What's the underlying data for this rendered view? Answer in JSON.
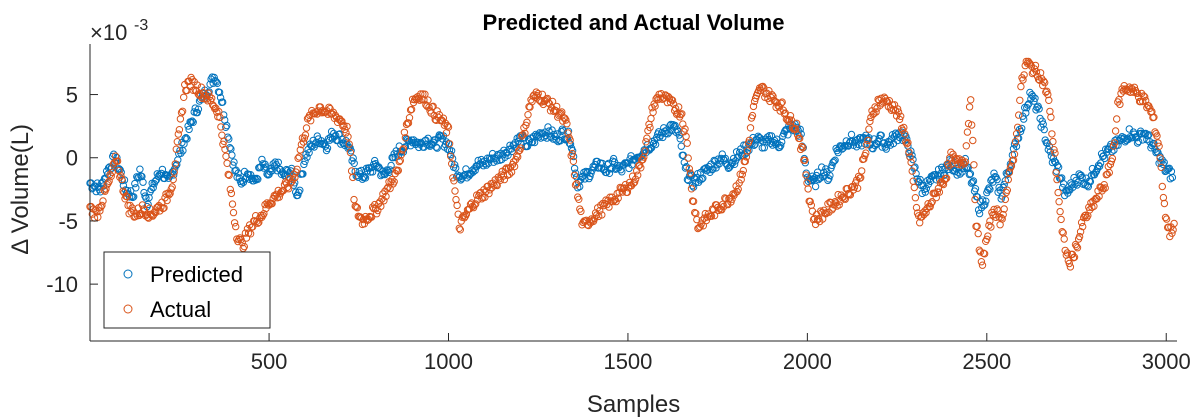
{
  "chart_data": {
    "type": "scatter",
    "title": "Predicted and Actual Volume",
    "xlabel": "Samples",
    "ylabel": "Δ Volume(L)",
    "y_exponent_label": "×10",
    "y_exponent": "-3",
    "xlim": [
      1,
      3030
    ],
    "ylim": [
      -14.5,
      9
    ],
    "x_ticks": [
      500,
      1000,
      1500,
      2000,
      2500,
      3000
    ],
    "y_ticks": [
      -10,
      -5,
      0,
      5
    ],
    "x_tick_labels": [
      "500",
      "1000",
      "1500",
      "2000",
      "2500",
      "3000"
    ],
    "y_tick_labels": [
      "-10",
      "-5",
      "0",
      "5"
    ],
    "legend_position": "bottom-left",
    "grid": false,
    "series": [
      {
        "name": "Predicted",
        "color": "#0072BD",
        "points": [
          [
            1,
            -2
          ],
          [
            30,
            -2.5
          ],
          [
            50,
            -1
          ],
          [
            70,
            0
          ],
          [
            85,
            -1
          ],
          [
            100,
            -2.5
          ],
          [
            120,
            -3
          ],
          [
            140,
            -1
          ],
          [
            160,
            -3.5
          ],
          [
            180,
            -2
          ],
          [
            200,
            -1
          ],
          [
            220,
            -2
          ],
          [
            240,
            -0.5
          ],
          [
            260,
            1
          ],
          [
            280,
            2.5
          ],
          [
            300,
            4
          ],
          [
            330,
            5.5
          ],
          [
            350,
            6.5
          ],
          [
            365,
            5
          ],
          [
            385,
            2
          ],
          [
            405,
            -1
          ],
          [
            420,
            -2
          ],
          [
            440,
            -1
          ],
          [
            460,
            -2
          ],
          [
            480,
            -0.5
          ],
          [
            500,
            -1.5
          ],
          [
            520,
            -0.5
          ],
          [
            540,
            -1.5
          ],
          [
            560,
            -1
          ],
          [
            580,
            -3
          ],
          [
            600,
            0
          ],
          [
            620,
            1
          ],
          [
            640,
            1.5
          ],
          [
            660,
            1
          ],
          [
            680,
            2
          ],
          [
            700,
            1.5
          ],
          [
            720,
            1
          ],
          [
            740,
            -1
          ],
          [
            760,
            -1.5
          ],
          [
            780,
            -1
          ],
          [
            800,
            -0.5
          ],
          [
            820,
            -1.5
          ],
          [
            840,
            -0.5
          ],
          [
            860,
            0.5
          ],
          [
            880,
            1
          ],
          [
            900,
            1.5
          ],
          [
            920,
            1
          ],
          [
            940,
            1.5
          ],
          [
            960,
            1
          ],
          [
            980,
            1.5
          ],
          [
            1000,
            1
          ],
          [
            1020,
            -1
          ],
          [
            1040,
            -1.5
          ],
          [
            1060,
            -1
          ],
          [
            1080,
            -0.5
          ],
          [
            1100,
            -0.5
          ],
          [
            1120,
            0
          ],
          [
            1140,
            0
          ],
          [
            1160,
            0.5
          ],
          [
            1180,
            1
          ],
          [
            1200,
            1.5
          ],
          [
            1220,
            1
          ],
          [
            1240,
            1.5
          ],
          [
            1260,
            2
          ],
          [
            1280,
            2
          ],
          [
            1300,
            1.5
          ],
          [
            1320,
            2
          ],
          [
            1340,
            1.5
          ],
          [
            1360,
            -2
          ],
          [
            1380,
            -1.5
          ],
          [
            1400,
            -1
          ],
          [
            1420,
            -0.5
          ],
          [
            1440,
            -1
          ],
          [
            1460,
            -0.5
          ],
          [
            1480,
            -1
          ],
          [
            1500,
            -0.5
          ],
          [
            1520,
            0
          ],
          [
            1540,
            0.5
          ],
          [
            1560,
            1
          ],
          [
            1580,
            1.5
          ],
          [
            1600,
            2
          ],
          [
            1620,
            2.5
          ],
          [
            1640,
            2
          ],
          [
            1660,
            -1
          ],
          [
            1680,
            -2
          ],
          [
            1700,
            -1.5
          ],
          [
            1720,
            -1
          ],
          [
            1740,
            -0.5
          ],
          [
            1760,
            0
          ],
          [
            1780,
            -0.5
          ],
          [
            1800,
            0
          ],
          [
            1820,
            0.5
          ],
          [
            1840,
            1
          ],
          [
            1860,
            1.5
          ],
          [
            1880,
            1
          ],
          [
            1900,
            1.5
          ],
          [
            1920,
            1
          ],
          [
            1940,
            2
          ],
          [
            1960,
            2.5
          ],
          [
            1980,
            2
          ],
          [
            2000,
            -1.5
          ],
          [
            2020,
            -2
          ],
          [
            2040,
            -1
          ],
          [
            2060,
            -1.5
          ],
          [
            2080,
            0.5
          ],
          [
            2100,
            1
          ],
          [
            2120,
            1.5
          ],
          [
            2140,
            1
          ],
          [
            2160,
            1.5
          ],
          [
            2180,
            1
          ],
          [
            2200,
            1.5
          ],
          [
            2220,
            1
          ],
          [
            2240,
            1.5
          ],
          [
            2260,
            2
          ],
          [
            2280,
            1
          ],
          [
            2300,
            -1
          ],
          [
            2320,
            -2.5
          ],
          [
            2340,
            -2
          ],
          [
            2360,
            -1.5
          ],
          [
            2380,
            -1
          ],
          [
            2400,
            -0.5
          ],
          [
            2420,
            -1
          ],
          [
            2440,
            -0.5
          ],
          [
            2460,
            -2
          ],
          [
            2480,
            -4
          ],
          [
            2500,
            -3
          ],
          [
            2520,
            -1.5
          ],
          [
            2540,
            -3
          ],
          [
            2560,
            -1
          ],
          [
            2580,
            1
          ],
          [
            2600,
            3
          ],
          [
            2620,
            5
          ],
          [
            2640,
            4
          ],
          [
            2660,
            2
          ],
          [
            2680,
            0
          ],
          [
            2700,
            -1
          ],
          [
            2720,
            -3
          ],
          [
            2740,
            -2
          ],
          [
            2760,
            -1.5
          ],
          [
            2780,
            -2
          ],
          [
            2800,
            -1
          ],
          [
            2820,
            0
          ],
          [
            2840,
            0.5
          ],
          [
            2860,
            1
          ],
          [
            2880,
            1.5
          ],
          [
            2900,
            2
          ],
          [
            2920,
            1.5
          ],
          [
            2940,
            2
          ],
          [
            2960,
            1
          ],
          [
            2980,
            0
          ],
          [
            3000,
            -1
          ],
          [
            3020,
            -1.5
          ]
        ]
      },
      {
        "name": "Actual",
        "color": "#D95319",
        "points": [
          [
            1,
            -4
          ],
          [
            20,
            -4.5
          ],
          [
            40,
            -3
          ],
          [
            60,
            -1.5
          ],
          [
            75,
            0
          ],
          [
            90,
            -2
          ],
          [
            110,
            -4
          ],
          [
            130,
            -4.5
          ],
          [
            150,
            -4
          ],
          [
            170,
            -4.5
          ],
          [
            190,
            -4
          ],
          [
            210,
            -3.5
          ],
          [
            230,
            -2
          ],
          [
            250,
            2
          ],
          [
            265,
            5.5
          ],
          [
            280,
            6
          ],
          [
            300,
            5.5
          ],
          [
            320,
            5
          ],
          [
            340,
            4.5
          ],
          [
            360,
            3.5
          ],
          [
            380,
            0
          ],
          [
            395,
            -3
          ],
          [
            410,
            -6
          ],
          [
            425,
            -7
          ],
          [
            440,
            -6
          ],
          [
            460,
            -5
          ],
          [
            480,
            -4.5
          ],
          [
            500,
            -3.5
          ],
          [
            520,
            -3
          ],
          [
            540,
            -2.5
          ],
          [
            560,
            -2
          ],
          [
            575,
            -1
          ],
          [
            590,
            1
          ],
          [
            610,
            3
          ],
          [
            640,
            4
          ],
          [
            670,
            3.5
          ],
          [
            700,
            3
          ],
          [
            720,
            2
          ],
          [
            730,
            -1
          ],
          [
            740,
            -4
          ],
          [
            760,
            -5
          ],
          [
            780,
            -4.5
          ],
          [
            800,
            -4
          ],
          [
            820,
            -3
          ],
          [
            840,
            -2
          ],
          [
            860,
            -1
          ],
          [
            880,
            2
          ],
          [
            900,
            4.5
          ],
          [
            920,
            5
          ],
          [
            940,
            4.5
          ],
          [
            960,
            3.5
          ],
          [
            980,
            3
          ],
          [
            1000,
            2
          ],
          [
            1015,
            -2
          ],
          [
            1030,
            -5.5
          ],
          [
            1050,
            -4.5
          ],
          [
            1070,
            -3.5
          ],
          [
            1090,
            -3
          ],
          [
            1110,
            -2.5
          ],
          [
            1130,
            -2
          ],
          [
            1150,
            -1.5
          ],
          [
            1170,
            -1
          ],
          [
            1190,
            0
          ],
          [
            1210,
            2
          ],
          [
            1230,
            4.5
          ],
          [
            1250,
            5
          ],
          [
            1270,
            4.5
          ],
          [
            1290,
            4
          ],
          [
            1310,
            3.5
          ],
          [
            1330,
            2.5
          ],
          [
            1345,
            0
          ],
          [
            1360,
            -3
          ],
          [
            1375,
            -5.5
          ],
          [
            1390,
            -5
          ],
          [
            1410,
            -4.5
          ],
          [
            1430,
            -4
          ],
          [
            1450,
            -3.5
          ],
          [
            1470,
            -3
          ],
          [
            1490,
            -2.5
          ],
          [
            1510,
            -2
          ],
          [
            1530,
            -1
          ],
          [
            1550,
            1
          ],
          [
            1570,
            4
          ],
          [
            1590,
            5
          ],
          [
            1610,
            4.5
          ],
          [
            1630,
            4
          ],
          [
            1650,
            3.5
          ],
          [
            1665,
            1
          ],
          [
            1680,
            -3
          ],
          [
            1695,
            -5.5
          ],
          [
            1710,
            -5
          ],
          [
            1730,
            -4.5
          ],
          [
            1750,
            -4
          ],
          [
            1770,
            -3.5
          ],
          [
            1790,
            -3
          ],
          [
            1810,
            -2
          ],
          [
            1830,
            0
          ],
          [
            1850,
            4
          ],
          [
            1870,
            5.5
          ],
          [
            1890,
            5
          ],
          [
            1910,
            4.5
          ],
          [
            1930,
            4
          ],
          [
            1950,
            3
          ],
          [
            1970,
            2.5
          ],
          [
            1990,
            0
          ],
          [
            2005,
            -3
          ],
          [
            2020,
            -5
          ],
          [
            2040,
            -4.5
          ],
          [
            2060,
            -4
          ],
          [
            2080,
            -3.5
          ],
          [
            2100,
            -3
          ],
          [
            2120,
            -2.5
          ],
          [
            2140,
            -2
          ],
          [
            2160,
            0
          ],
          [
            2180,
            3.5
          ],
          [
            2200,
            4.5
          ],
          [
            2220,
            4.5
          ],
          [
            2240,
            4
          ],
          [
            2260,
            3
          ],
          [
            2280,
            1
          ],
          [
            2295,
            -2
          ],
          [
            2310,
            -5
          ],
          [
            2325,
            -4.5
          ],
          [
            2345,
            -3.5
          ],
          [
            2365,
            -2.5
          ],
          [
            2385,
            -1.5
          ],
          [
            2400,
            0
          ],
          [
            2420,
            -0.5
          ],
          [
            2440,
            0
          ],
          [
            2455,
            5
          ],
          [
            2470,
            -5
          ],
          [
            2485,
            -8.5
          ],
          [
            2500,
            -6.5
          ],
          [
            2520,
            -4
          ],
          [
            2540,
            -5
          ],
          [
            2560,
            -2
          ],
          [
            2580,
            1
          ],
          [
            2595,
            5.5
          ],
          [
            2610,
            7.5
          ],
          [
            2630,
            7
          ],
          [
            2650,
            6.5
          ],
          [
            2670,
            5
          ],
          [
            2690,
            0
          ],
          [
            2710,
            -6
          ],
          [
            2730,
            -8.5
          ],
          [
            2750,
            -7
          ],
          [
            2770,
            -5
          ],
          [
            2790,
            -4
          ],
          [
            2810,
            -3
          ],
          [
            2830,
            -2
          ],
          [
            2850,
            0
          ],
          [
            2865,
            4
          ],
          [
            2880,
            5.5
          ],
          [
            2900,
            5.5
          ],
          [
            2920,
            5
          ],
          [
            2940,
            4.5
          ],
          [
            2960,
            3.5
          ],
          [
            2980,
            1
          ],
          [
            2995,
            -4
          ],
          [
            3010,
            -6
          ],
          [
            3025,
            -5
          ]
        ]
      }
    ]
  }
}
